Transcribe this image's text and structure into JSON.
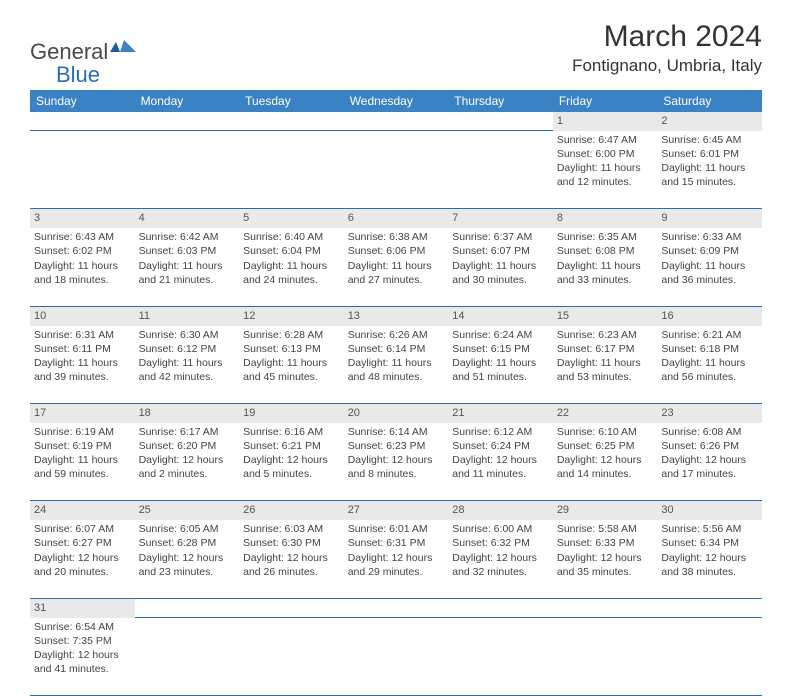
{
  "logo": {
    "general": "General",
    "blue": "Blue"
  },
  "title": "March 2024",
  "location": "Fontignano, Umbria, Italy",
  "colors": {
    "header_bg": "#3b82c4",
    "header_text": "#ffffff",
    "daynum_bg": "#e9e9e9",
    "border": "#2a6db5",
    "text": "#444444",
    "logo_gray": "#4a4a4a",
    "logo_blue": "#2a6db5"
  },
  "weekdays": [
    "Sunday",
    "Monday",
    "Tuesday",
    "Wednesday",
    "Thursday",
    "Friday",
    "Saturday"
  ],
  "weeks": [
    [
      null,
      null,
      null,
      null,
      null,
      {
        "n": "1",
        "sr": "6:47 AM",
        "ss": "6:00 PM",
        "dl": "11 hours and 12 minutes."
      },
      {
        "n": "2",
        "sr": "6:45 AM",
        "ss": "6:01 PM",
        "dl": "11 hours and 15 minutes."
      }
    ],
    [
      {
        "n": "3",
        "sr": "6:43 AM",
        "ss": "6:02 PM",
        "dl": "11 hours and 18 minutes."
      },
      {
        "n": "4",
        "sr": "6:42 AM",
        "ss": "6:03 PM",
        "dl": "11 hours and 21 minutes."
      },
      {
        "n": "5",
        "sr": "6:40 AM",
        "ss": "6:04 PM",
        "dl": "11 hours and 24 minutes."
      },
      {
        "n": "6",
        "sr": "6:38 AM",
        "ss": "6:06 PM",
        "dl": "11 hours and 27 minutes."
      },
      {
        "n": "7",
        "sr": "6:37 AM",
        "ss": "6:07 PM",
        "dl": "11 hours and 30 minutes."
      },
      {
        "n": "8",
        "sr": "6:35 AM",
        "ss": "6:08 PM",
        "dl": "11 hours and 33 minutes."
      },
      {
        "n": "9",
        "sr": "6:33 AM",
        "ss": "6:09 PM",
        "dl": "11 hours and 36 minutes."
      }
    ],
    [
      {
        "n": "10",
        "sr": "6:31 AM",
        "ss": "6:11 PM",
        "dl": "11 hours and 39 minutes."
      },
      {
        "n": "11",
        "sr": "6:30 AM",
        "ss": "6:12 PM",
        "dl": "11 hours and 42 minutes."
      },
      {
        "n": "12",
        "sr": "6:28 AM",
        "ss": "6:13 PM",
        "dl": "11 hours and 45 minutes."
      },
      {
        "n": "13",
        "sr": "6:26 AM",
        "ss": "6:14 PM",
        "dl": "11 hours and 48 minutes."
      },
      {
        "n": "14",
        "sr": "6:24 AM",
        "ss": "6:15 PM",
        "dl": "11 hours and 51 minutes."
      },
      {
        "n": "15",
        "sr": "6:23 AM",
        "ss": "6:17 PM",
        "dl": "11 hours and 53 minutes."
      },
      {
        "n": "16",
        "sr": "6:21 AM",
        "ss": "6:18 PM",
        "dl": "11 hours and 56 minutes."
      }
    ],
    [
      {
        "n": "17",
        "sr": "6:19 AM",
        "ss": "6:19 PM",
        "dl": "11 hours and 59 minutes."
      },
      {
        "n": "18",
        "sr": "6:17 AM",
        "ss": "6:20 PM",
        "dl": "12 hours and 2 minutes."
      },
      {
        "n": "19",
        "sr": "6:16 AM",
        "ss": "6:21 PM",
        "dl": "12 hours and 5 minutes."
      },
      {
        "n": "20",
        "sr": "6:14 AM",
        "ss": "6:23 PM",
        "dl": "12 hours and 8 minutes."
      },
      {
        "n": "21",
        "sr": "6:12 AM",
        "ss": "6:24 PM",
        "dl": "12 hours and 11 minutes."
      },
      {
        "n": "22",
        "sr": "6:10 AM",
        "ss": "6:25 PM",
        "dl": "12 hours and 14 minutes."
      },
      {
        "n": "23",
        "sr": "6:08 AM",
        "ss": "6:26 PM",
        "dl": "12 hours and 17 minutes."
      }
    ],
    [
      {
        "n": "24",
        "sr": "6:07 AM",
        "ss": "6:27 PM",
        "dl": "12 hours and 20 minutes."
      },
      {
        "n": "25",
        "sr": "6:05 AM",
        "ss": "6:28 PM",
        "dl": "12 hours and 23 minutes."
      },
      {
        "n": "26",
        "sr": "6:03 AM",
        "ss": "6:30 PM",
        "dl": "12 hours and 26 minutes."
      },
      {
        "n": "27",
        "sr": "6:01 AM",
        "ss": "6:31 PM",
        "dl": "12 hours and 29 minutes."
      },
      {
        "n": "28",
        "sr": "6:00 AM",
        "ss": "6:32 PM",
        "dl": "12 hours and 32 minutes."
      },
      {
        "n": "29",
        "sr": "5:58 AM",
        "ss": "6:33 PM",
        "dl": "12 hours and 35 minutes."
      },
      {
        "n": "30",
        "sr": "5:56 AM",
        "ss": "6:34 PM",
        "dl": "12 hours and 38 minutes."
      }
    ],
    [
      {
        "n": "31",
        "sr": "6:54 AM",
        "ss": "7:35 PM",
        "dl": "12 hours and 41 minutes."
      },
      null,
      null,
      null,
      null,
      null,
      null
    ]
  ],
  "labels": {
    "sunrise": "Sunrise:",
    "sunset": "Sunset:",
    "daylight": "Daylight:"
  }
}
